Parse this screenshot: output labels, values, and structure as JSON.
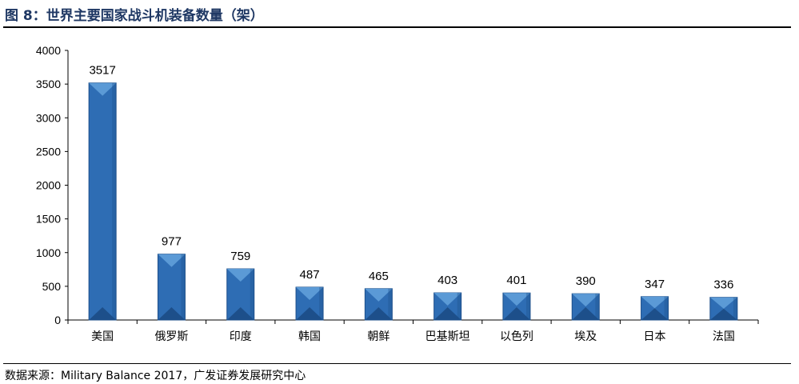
{
  "header": {
    "title": "图 8：世界主要国家战斗机装备数量（架）"
  },
  "footer": {
    "source": "数据来源：Military Balance 2017，广发证券发展研究中心"
  },
  "colors": {
    "bar": "#2e6db4",
    "bar_dark": "#1d4f8a",
    "bar_light": "#5b9ad6",
    "title": "#1f3864"
  },
  "chart_data": {
    "type": "bar",
    "categories": [
      "美国",
      "俄罗斯",
      "印度",
      "韩国",
      "朝鲜",
      "巴基斯坦",
      "以色列",
      "埃及",
      "日本",
      "法国"
    ],
    "values": [
      3517,
      977,
      759,
      487,
      465,
      403,
      401,
      390,
      347,
      336
    ],
    "yticks": [
      0,
      500,
      1000,
      1500,
      2000,
      2500,
      3000,
      3500,
      4000
    ],
    "ylim": [
      0,
      4000
    ],
    "grid": false,
    "legend": "none"
  }
}
